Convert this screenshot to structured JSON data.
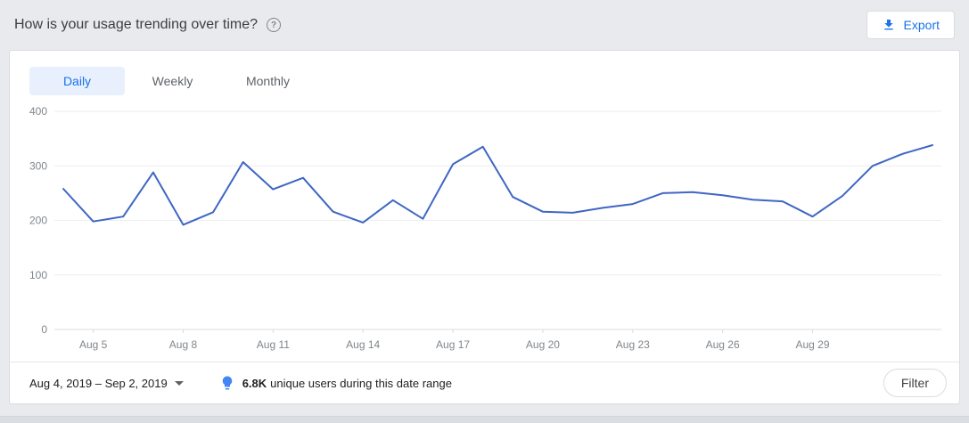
{
  "header": {
    "title": "How is your usage trending over time?",
    "help_glyph": "?",
    "export_label": "Export"
  },
  "tabs": [
    {
      "label": "Daily",
      "active": true
    },
    {
      "label": "Weekly",
      "active": false
    },
    {
      "label": "Monthly",
      "active": false
    }
  ],
  "footer": {
    "date_range": "Aug 4, 2019 – Sep 2, 2019",
    "insight_value": "6.8K",
    "insight_text": "unique users during this date range",
    "filter_label": "Filter"
  },
  "colors": {
    "accent": "#1a73e8",
    "tab_active_bg": "#e8f0fe",
    "line": "#3e66c4",
    "axis_text": "#80868b",
    "grid": "#eceef1"
  },
  "chart_data": {
    "type": "line",
    "title": "How is your usage trending over time?",
    "xlabel": "",
    "ylabel": "",
    "ylim": [
      0,
      400
    ],
    "yticks": [
      0,
      100,
      200,
      300,
      400
    ],
    "grid": true,
    "legend": false,
    "line_color": "#3e66c4",
    "x": [
      "Aug 4",
      "Aug 5",
      "Aug 6",
      "Aug 7",
      "Aug 8",
      "Aug 9",
      "Aug 10",
      "Aug 11",
      "Aug 12",
      "Aug 13",
      "Aug 14",
      "Aug 15",
      "Aug 16",
      "Aug 17",
      "Aug 18",
      "Aug 19",
      "Aug 20",
      "Aug 21",
      "Aug 22",
      "Aug 23",
      "Aug 24",
      "Aug 25",
      "Aug 26",
      "Aug 27",
      "Aug 28",
      "Aug 29",
      "Aug 30",
      "Aug 31",
      "Sep 1",
      "Sep 2"
    ],
    "values": [
      258,
      198,
      207,
      288,
      192,
      215,
      307,
      257,
      278,
      216,
      196,
      237,
      203,
      303,
      335,
      243,
      216,
      214,
      223,
      230,
      250,
      252,
      246,
      238,
      235,
      207,
      245,
      300,
      322,
      338
    ],
    "x_tick_indices": [
      1,
      4,
      7,
      10,
      13,
      16,
      19,
      22,
      25
    ]
  }
}
